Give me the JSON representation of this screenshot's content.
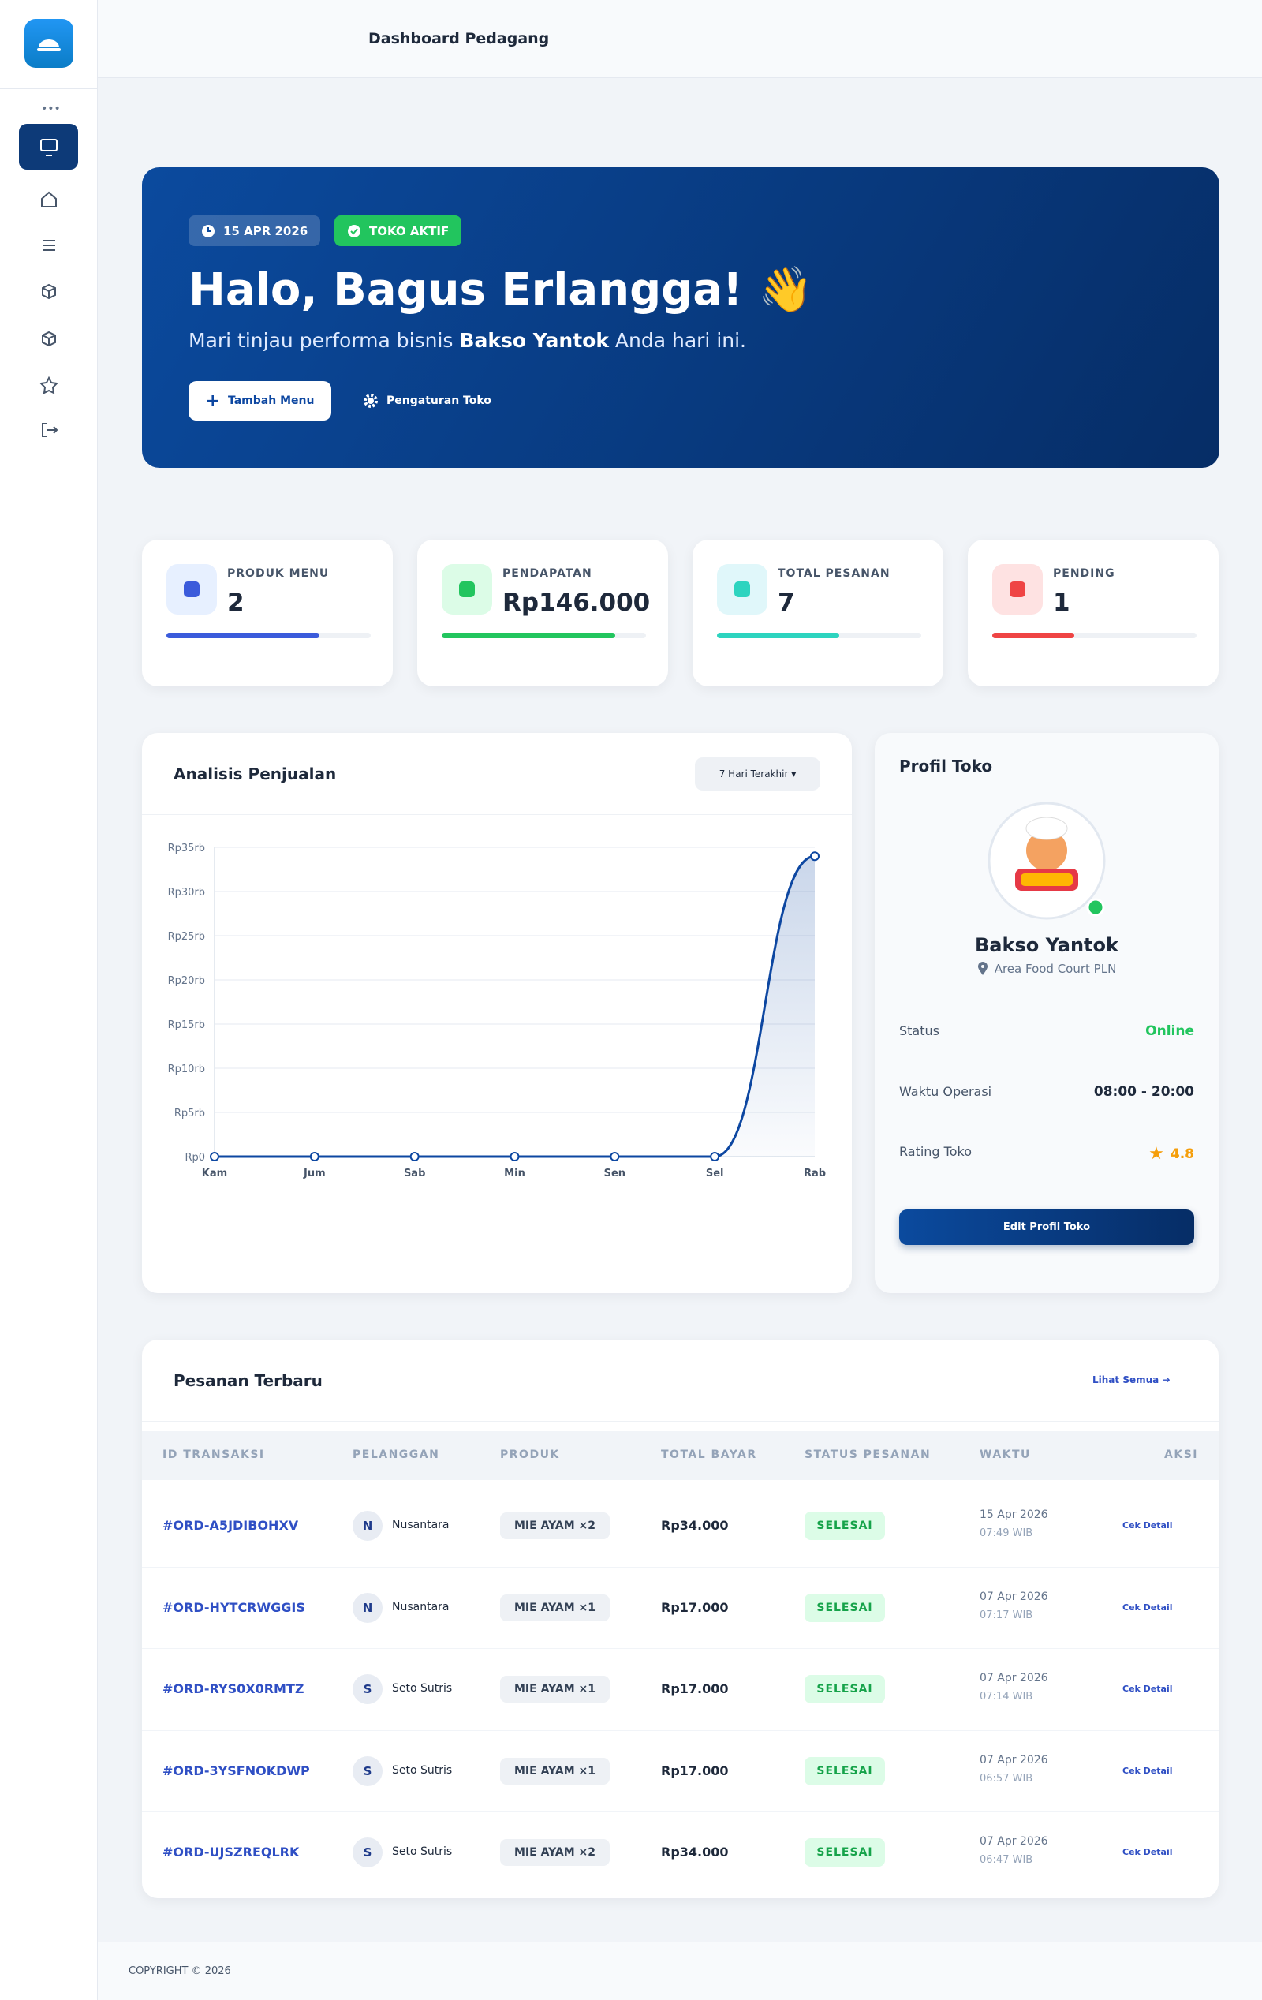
{
  "header": {
    "title": "Dashboard Pedagang"
  },
  "hero": {
    "date": "15 APR 2026",
    "status": "TOKO AKTIF",
    "greeting": "Halo, Bagus Erlangga! 👋",
    "subtitle_before": "Mari tinjau performa bisnis",
    "store": "Bakso Yantok",
    "subtitle_after": "Anda hari ini.",
    "button_primary": "Tambah Menu",
    "button_secondary": "Pengaturan Toko"
  },
  "stats": [
    {
      "label": "PRODUK MENU",
      "value": 2,
      "color": "#3b5bdb",
      "bg": "#e7f0ff",
      "progress": 75
    },
    {
      "label": "PENDAPATAN",
      "value": "Rp146.000",
      "color": "#22c55e",
      "bg": "#dcfce7",
      "progress": 85
    },
    {
      "label": "TOTAL PESANAN",
      "value": 7,
      "color": "#2dd4bf",
      "bg": "#e0f7fa",
      "progress": 60
    },
    {
      "label": "PENDING",
      "value": 1,
      "color": "#ef4444",
      "bg": "#fee2e2",
      "progress": 40
    }
  ],
  "chart_data": {
    "type": "line",
    "title": "Analisis Penjualan",
    "range_button": "7 Hari Terakhir",
    "categories": [
      "Kam",
      "Jum",
      "Sab",
      "Min",
      "Sen",
      "Sel",
      "Rab"
    ],
    "series": [
      {
        "name": "Penjualan",
        "color": "#0d47a1",
        "values": [
          0,
          0,
          0,
          0,
          0,
          0,
          34000
        ]
      }
    ],
    "ylim": [
      0,
      35000
    ],
    "yticks": [
      {
        "value": 0,
        "label": "Rp0"
      },
      {
        "value": 5000,
        "label": "Rp5rb"
      },
      {
        "value": 10000,
        "label": "Rp10rb"
      },
      {
        "value": 15000,
        "label": "Rp15rb"
      },
      {
        "value": 20000,
        "label": "Rp20rb"
      },
      {
        "value": 25000,
        "label": "Rp25rb"
      },
      {
        "value": 30000,
        "label": "Rp30rb"
      },
      {
        "value": 35000,
        "label": "Rp35rb"
      }
    ],
    "grid": true
  },
  "profile": {
    "title": "Profil Toko",
    "name": "Bakso Yantok",
    "location": "Area Food Court PLN",
    "rows": [
      {
        "label": "Status",
        "value": "Online"
      },
      {
        "label": "Waktu Operasi",
        "value": "08:00 - 20:00"
      },
      {
        "label": "Rating Toko",
        "value": "4.8"
      }
    ],
    "button": "Edit Profil Toko"
  },
  "orders": {
    "title": "Pesanan Terbaru",
    "link": "Lihat Semua",
    "columns": [
      "ID TRANSAKSI",
      "PELANGGAN",
      "PRODUK",
      "TOTAL BAYAR",
      "STATUS PESANAN",
      "WAKTU",
      "AKSI"
    ],
    "rows": [
      {
        "id": "#ORD-A5JDIBOHXV",
        "initial": "N",
        "customer": "Nusantara",
        "product": "MIE AYAM ×2",
        "total": "Rp34.000",
        "status": "SELESAI",
        "date": "15 Apr 2026",
        "time": "07:49 WIB",
        "action": "Cek Detail"
      },
      {
        "id": "#ORD-HYTCRWGGIS",
        "initial": "N",
        "customer": "Nusantara",
        "product": "MIE AYAM ×1",
        "total": "Rp17.000",
        "status": "SELESAI",
        "date": "07 Apr 2026",
        "time": "07:17 WIB",
        "action": "Cek Detail"
      },
      {
        "id": "#ORD-RYS0X0RMTZ",
        "initial": "S",
        "customer": "Seto Sutris",
        "product": "MIE AYAM ×1",
        "total": "Rp17.000",
        "status": "SELESAI",
        "date": "07 Apr 2026",
        "time": "07:14 WIB",
        "action": "Cek Detail"
      },
      {
        "id": "#ORD-3YSFNOKDWP",
        "initial": "S",
        "customer": "Seto Sutris",
        "product": "MIE AYAM ×1",
        "total": "Rp17.000",
        "status": "SELESAI",
        "date": "07 Apr 2026",
        "time": "06:57 WIB",
        "action": "Cek Detail"
      },
      {
        "id": "#ORD-UJSZREQLRK",
        "initial": "S",
        "customer": "Seto Sutris",
        "product": "MIE AYAM ×2",
        "total": "Rp34.000",
        "status": "SELESAI",
        "date": "07 Apr 2026",
        "time": "06:47 WIB",
        "action": "Cek Detail"
      }
    ]
  },
  "footer": {
    "copyright": "COPYRIGHT © 2026"
  }
}
